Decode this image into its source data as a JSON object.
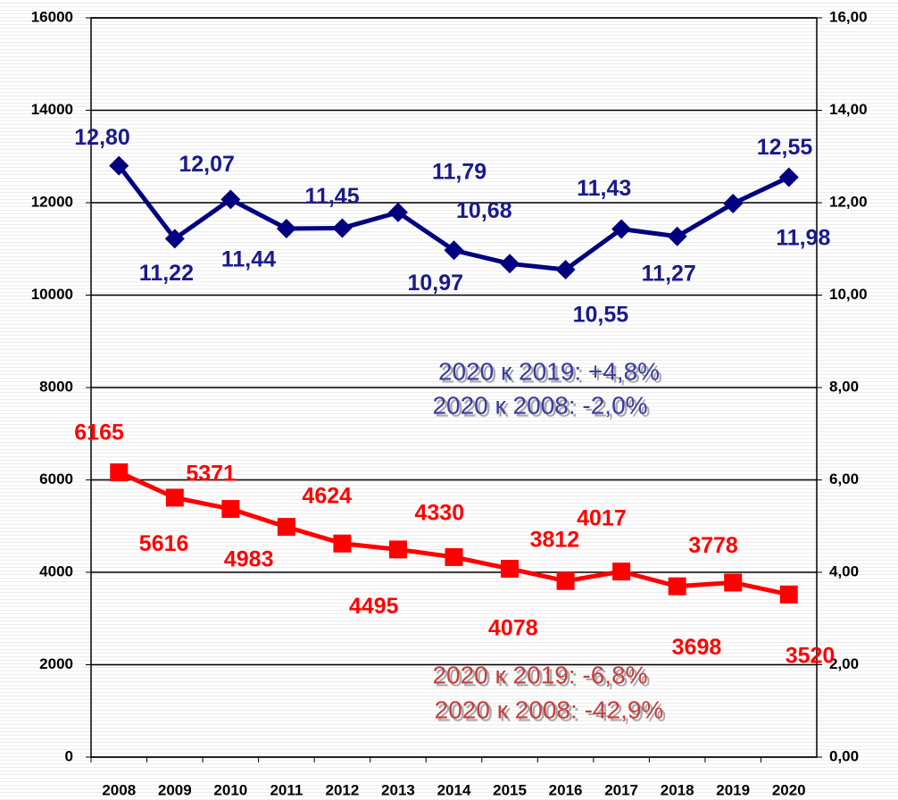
{
  "chart_data": {
    "type": "line",
    "categories": [
      "2008",
      "2009",
      "2010",
      "2011",
      "2012",
      "2013",
      "2014",
      "2015",
      "2016",
      "2017",
      "2018",
      "2019",
      "2020"
    ],
    "series": [
      {
        "name": "red",
        "color": "#ff0000",
        "axis": "y",
        "values": [
          6165,
          5616,
          5371,
          4983,
          4624,
          4495,
          4330,
          4078,
          3812,
          4017,
          3698,
          3778,
          3520
        ]
      },
      {
        "name": "blue",
        "color": "#000080",
        "axis": "y2",
        "values": [
          12.8,
          11.22,
          12.07,
          11.44,
          11.45,
          11.79,
          10.97,
          10.68,
          10.55,
          11.43,
          11.27,
          11.98,
          12.55
        ],
        "value_labels": [
          "12,80",
          "11,22",
          "12,07",
          "11,44",
          "11,45",
          "11,79",
          "10,97",
          "10,68",
          "10,55",
          "11,43",
          "11,27",
          "11,98",
          "12,55"
        ]
      }
    ],
    "ylim": [
      0,
      16000
    ],
    "yticks": [
      0,
      2000,
      4000,
      6000,
      8000,
      10000,
      12000,
      14000,
      16000
    ],
    "y2lim": [
      0,
      16
    ],
    "y2ticks": [
      {
        "value": 0,
        "label": "0,00"
      },
      {
        "value": 2,
        "label": "2,00"
      },
      {
        "value": 4,
        "label": "4,00"
      },
      {
        "value": 6,
        "label": "6,00"
      },
      {
        "value": 8,
        "label": "8,00"
      },
      {
        "value": 10,
        "label": "10,00"
      },
      {
        "value": 12,
        "label": "12,00"
      },
      {
        "value": 14,
        "label": "14,00"
      },
      {
        "value": 16,
        "label": "16,00"
      }
    ],
    "grid": true,
    "annotations": [
      "2020 к 2019: +4,8%",
      "2020 к 2008: -2,0%",
      "2020 к 2019: -6,8%",
      "2020 к 2008: -42,9%"
    ]
  }
}
